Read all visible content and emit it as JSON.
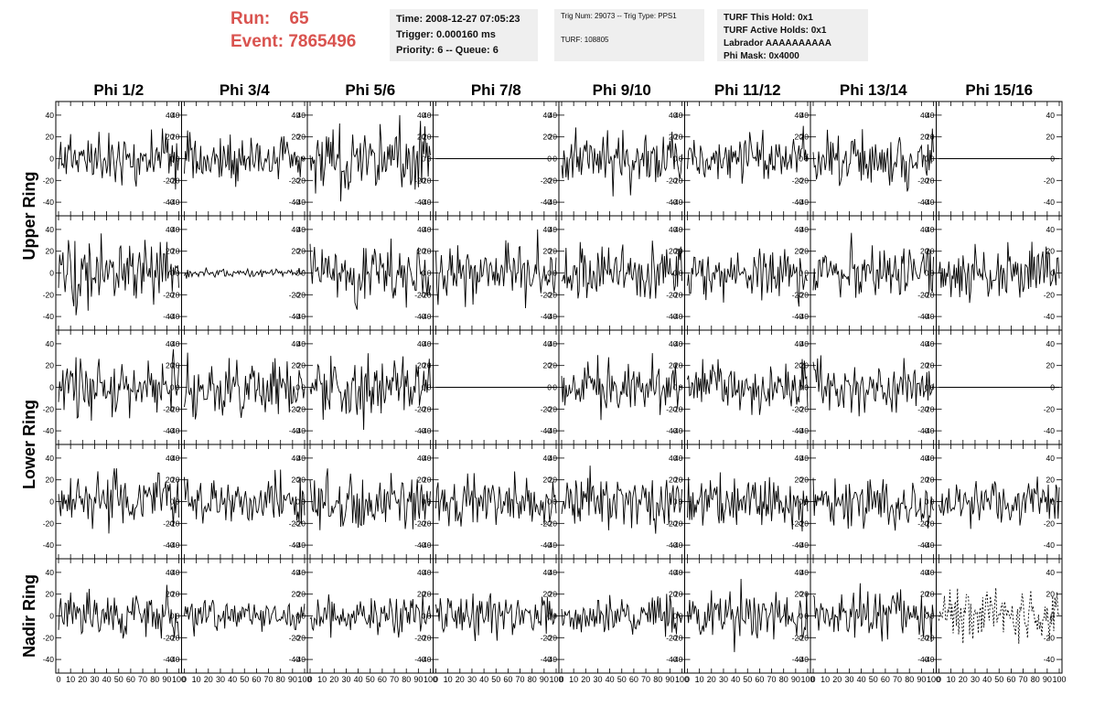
{
  "header": {
    "run_label": "Run:",
    "run_value": "65",
    "event_label": "Event:",
    "event_value": "7865496",
    "time": "Time: 2008-12-27 07:05:23",
    "trigger": "Trigger: 0.000160 ms",
    "priority": "Priority: 6 -- Queue: 6",
    "trig_num": "Trig Num: 29073 -- Trig Type: PPS1",
    "turf": "TURF: 108805",
    "turf_this_hold": "TURF This Hold: 0x1",
    "turf_active_holds": "TURF Active Holds: 0x1",
    "labrador": "Labrador AAAAAAAAAA",
    "phi_mask": "Phi Mask: 0x4000"
  },
  "colors": {
    "run_text": "#d9534f",
    "info_bg": "#efefef",
    "trace": "#000000"
  },
  "chart_data": {
    "type": "line",
    "columns": [
      "Phi 1/2",
      "Phi 3/4",
      "Phi 5/6",
      "Phi 7/8",
      "Phi 9/10",
      "Phi 11/12",
      "Phi 13/14",
      "Phi 15/16"
    ],
    "row_groups": [
      {
        "label": "Upper Ring",
        "rows": [
          0,
          1
        ]
      },
      {
        "label": "Lower Ring",
        "rows": [
          2,
          3
        ]
      },
      {
        "label": "Nadir Ring",
        "rows": [
          4
        ]
      }
    ],
    "xlim": [
      0,
      100
    ],
    "ylim": [
      -50,
      50
    ],
    "xticks": [
      "0",
      "10",
      "20",
      "30",
      "40",
      "50",
      "60",
      "70",
      "80",
      "90",
      "100"
    ],
    "yticks": [
      "40",
      "20",
      "0",
      "-20",
      "-40"
    ],
    "xtick_values": [
      0,
      10,
      20,
      30,
      40,
      50,
      60,
      70,
      80,
      90,
      100
    ],
    "ytick_values": [
      40,
      20,
      0,
      -20,
      -40
    ],
    "panels": [
      [
        {
          "amp": 12,
          "seed": 11
        },
        {
          "amp": 12,
          "seed": 12
        },
        {
          "amp": 16,
          "seed": 13
        },
        {
          "amp": 0,
          "seed": 14
        },
        {
          "amp": 12,
          "seed": 15
        },
        {
          "amp": 11,
          "seed": 16
        },
        {
          "amp": 12,
          "seed": 17
        },
        {
          "amp": 0,
          "seed": 18
        }
      ],
      [
        {
          "amp": 15,
          "seed": 21
        },
        {
          "amp": 2,
          "seed": 22
        },
        {
          "amp": 15,
          "seed": 23
        },
        {
          "amp": 14,
          "seed": 24
        },
        {
          "amp": 12,
          "seed": 25
        },
        {
          "amp": 12,
          "seed": 26
        },
        {
          "amp": 12,
          "seed": 27
        },
        {
          "amp": 13,
          "seed": 28
        }
      ],
      [
        {
          "amp": 13,
          "seed": 31
        },
        {
          "amp": 13,
          "seed": 32
        },
        {
          "amp": 15,
          "seed": 33
        },
        {
          "amp": 0,
          "seed": 34
        },
        {
          "amp": 11,
          "seed": 35
        },
        {
          "amp": 12,
          "seed": 36
        },
        {
          "amp": 12,
          "seed": 37
        },
        {
          "amp": 0,
          "seed": 38
        }
      ],
      [
        {
          "amp": 13,
          "seed": 41
        },
        {
          "amp": 12,
          "seed": 42
        },
        {
          "amp": 13,
          "seed": 43
        },
        {
          "amp": 12,
          "seed": 44
        },
        {
          "amp": 13,
          "seed": 45
        },
        {
          "amp": 12,
          "seed": 46
        },
        {
          "amp": 12,
          "seed": 47
        },
        {
          "amp": 12,
          "seed": 48
        }
      ],
      [
        {
          "amp": 10,
          "seed": 51
        },
        {
          "amp": 8,
          "seed": 52
        },
        {
          "amp": 9,
          "seed": 53
        },
        {
          "amp": 10,
          "seed": 54
        },
        {
          "amp": 9,
          "seed": 55
        },
        {
          "amp": 12,
          "seed": 56
        },
        {
          "amp": 11,
          "seed": 57
        },
        {
          "amp": 12,
          "seed": 58,
          "dashed": true
        }
      ]
    ]
  }
}
